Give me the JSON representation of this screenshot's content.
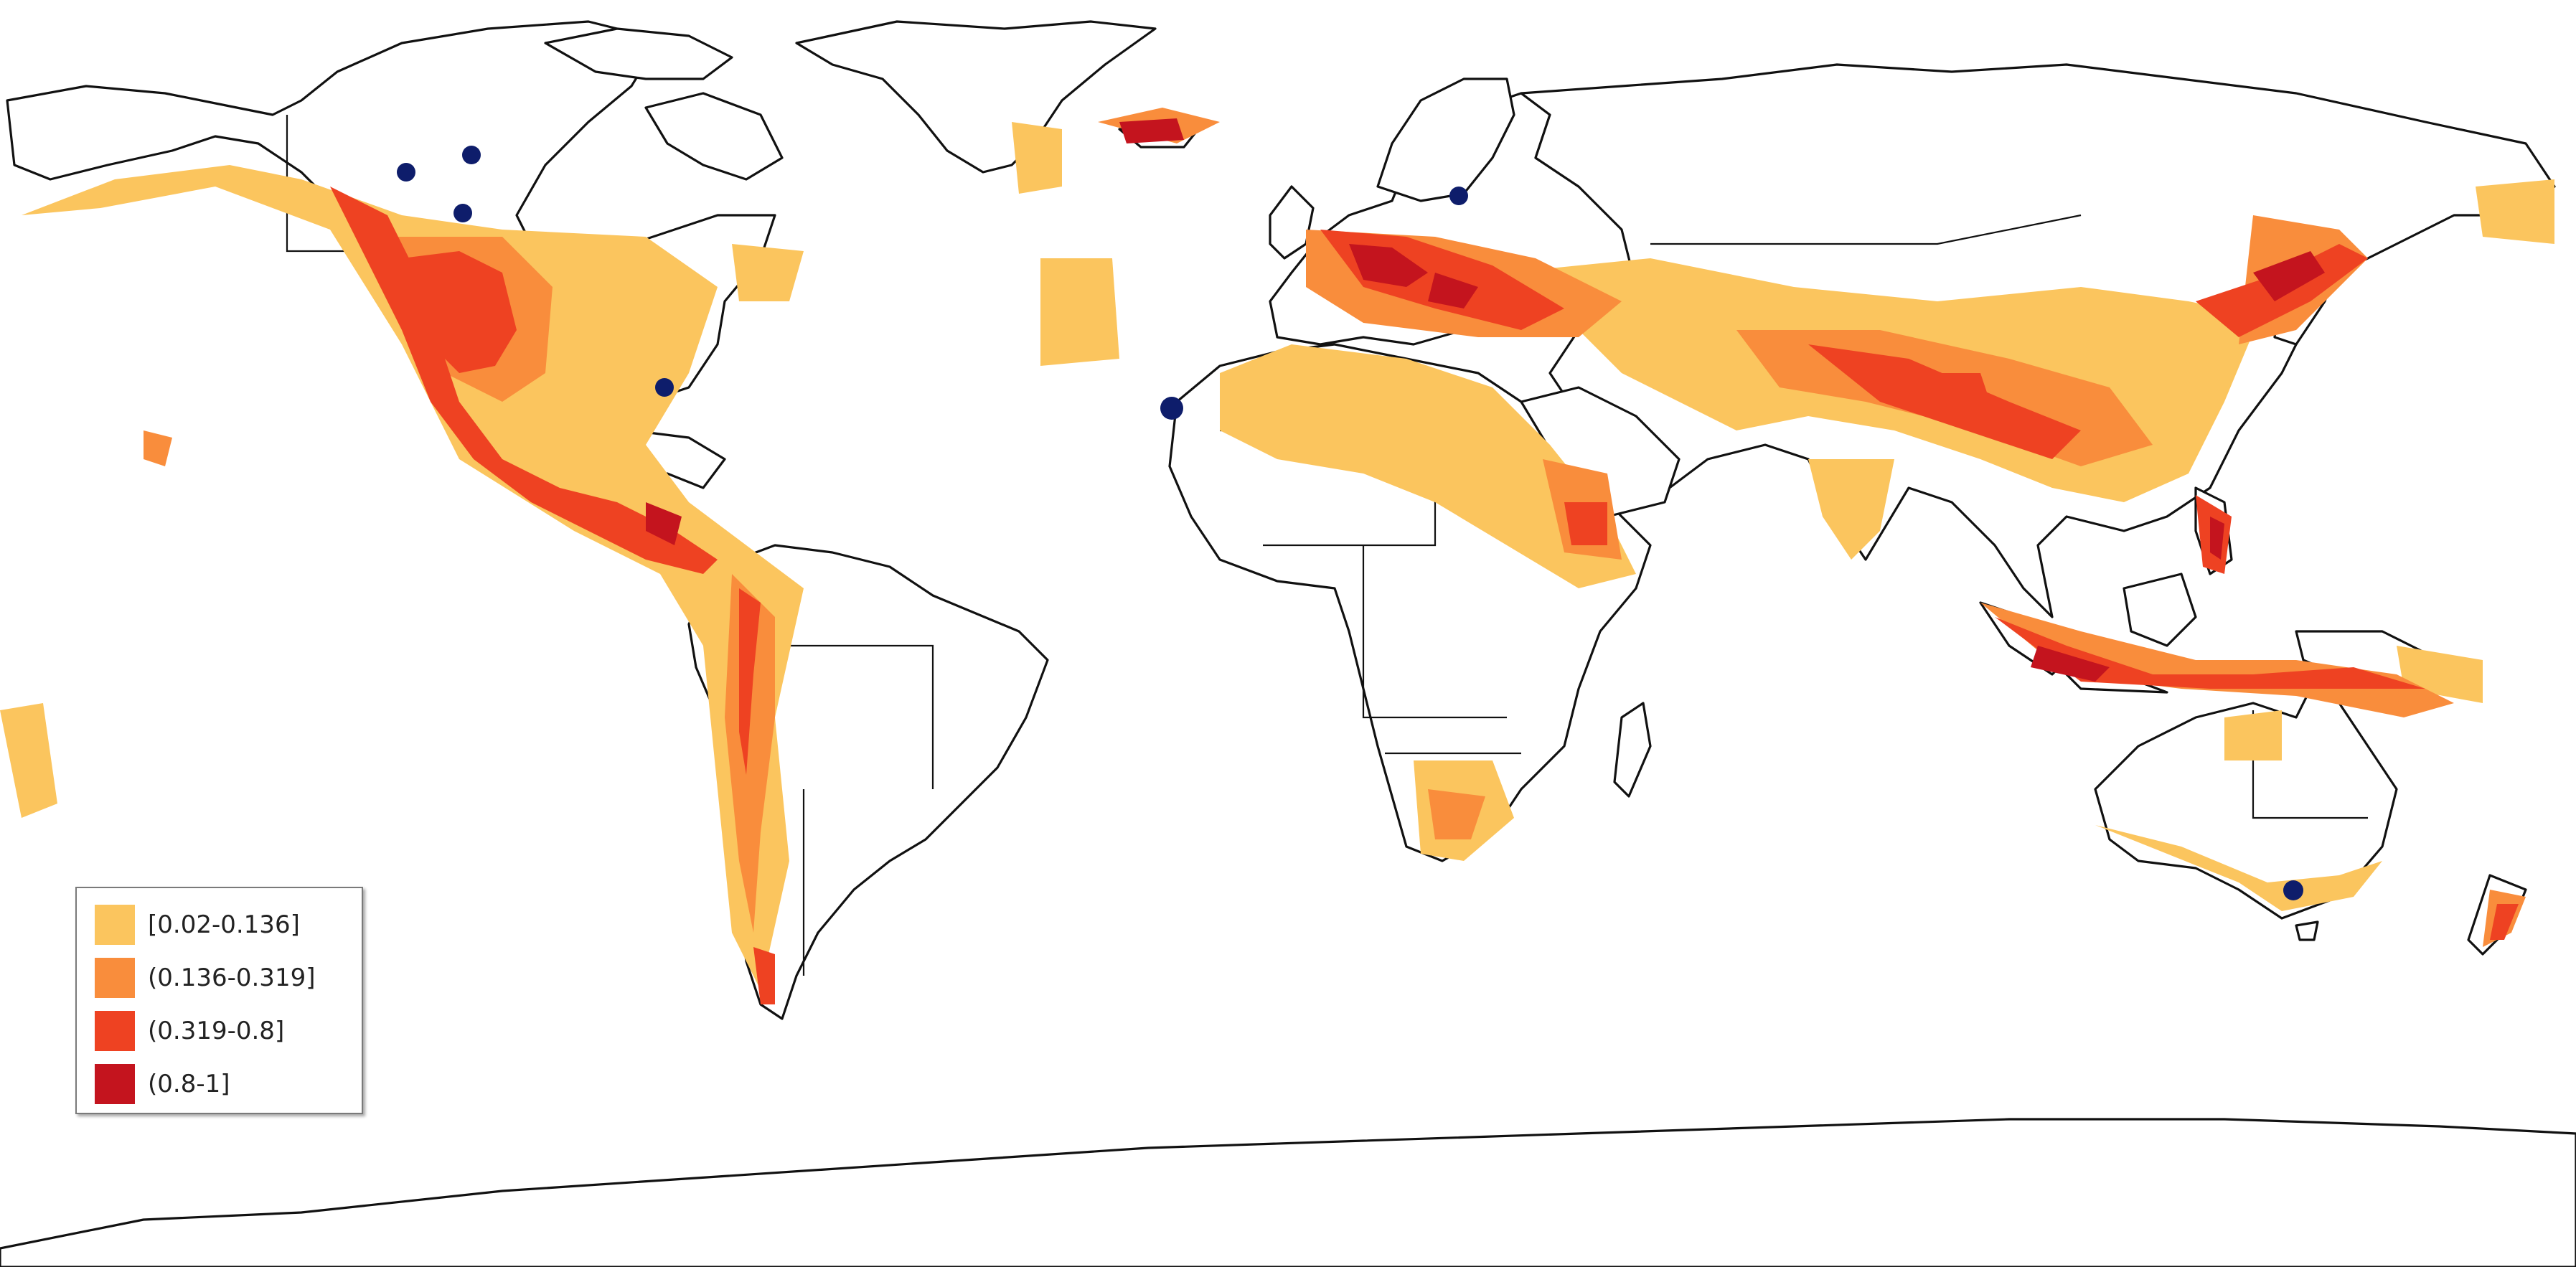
{
  "legend": {
    "items": [
      {
        "label": "[0.02-0.136]",
        "color": "#fbc55e"
      },
      {
        "label": "(0.136-0.319]",
        "color": "#f98d3c"
      },
      {
        "label": "(0.319-0.8]",
        "color": "#ee4222"
      },
      {
        "label": "(0.8-1]",
        "color": "#c4141e"
      }
    ]
  },
  "colors": {
    "land_fill": "#ffffff",
    "coastline": "#111111",
    "marker": "#0e1d6b"
  },
  "icons": {
    "marker": "dot-marker-icon"
  }
}
